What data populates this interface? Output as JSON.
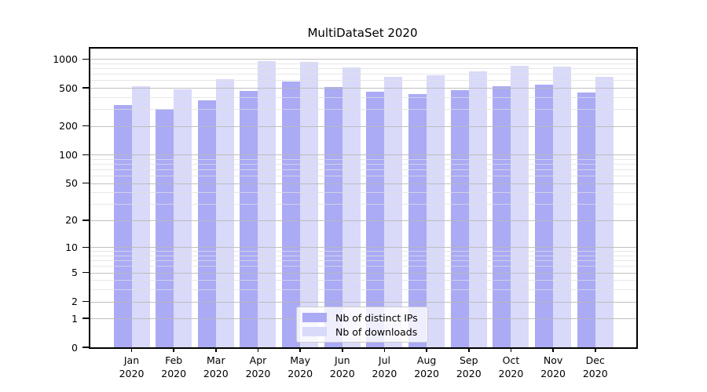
{
  "chart_data": {
    "type": "bar",
    "title": "MultiDataSet 2020",
    "categories": [
      "Jan",
      "Feb",
      "Mar",
      "Apr",
      "May",
      "Jun",
      "Jul",
      "Aug",
      "Sep",
      "Oct",
      "Nov",
      "Dec"
    ],
    "category_year": "2020",
    "series": [
      {
        "name": "Nb of distinct IPs",
        "color": "#aaaaf5",
        "values": [
          330,
          300,
          370,
          465,
          580,
          515,
          455,
          435,
          470,
          520,
          540,
          450
        ]
      },
      {
        "name": "Nb of downloads",
        "color": "#d9d9f9",
        "values": [
          525,
          485,
          615,
          950,
          925,
          815,
          650,
          680,
          750,
          845,
          830,
          655
        ]
      }
    ],
    "xlabel": "",
    "ylabel": "",
    "y_scale": "symlog-log1p",
    "y_ticks": [
      0,
      1,
      2,
      5,
      10,
      20,
      50,
      100,
      200,
      500,
      1000
    ],
    "y_minor_gridlines": [
      3,
      4,
      6,
      7,
      8,
      9,
      30,
      40,
      60,
      70,
      80,
      90,
      300,
      400,
      600,
      700,
      800,
      900
    ],
    "ylim": [
      0,
      1334
    ],
    "grid": "on",
    "gridlines_over_bars": true,
    "legend_position": "bottom-center"
  }
}
